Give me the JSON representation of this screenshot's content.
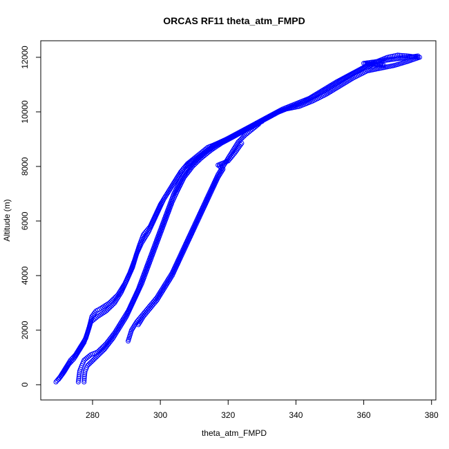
{
  "chart_data": {
    "type": "scatter",
    "title": "ORCAS RF11 theta_atm_FMPD",
    "xlabel": "theta_atm_FMPD",
    "ylabel": "Altitude (m)",
    "xlim": [
      269,
      377
    ],
    "ylim": [
      100,
      12100
    ],
    "xticks": [
      280,
      300,
      320,
      340,
      360,
      380
    ],
    "yticks": [
      0,
      2000,
      4000,
      6000,
      8000,
      10000,
      12000
    ],
    "grid": false,
    "marker": "open-circle",
    "color": "#0000ff",
    "series": [
      {
        "points": [
          [
            269.2,
            100
          ],
          [
            270.5,
            300
          ],
          [
            272.0,
            600
          ],
          [
            273.5,
            900
          ],
          [
            275.0,
            1100
          ],
          [
            276.5,
            1400
          ],
          [
            278.0,
            1700
          ],
          [
            279.0,
            2100
          ],
          [
            279.8,
            2500
          ],
          [
            281.0,
            2700
          ],
          [
            282.5,
            2800
          ],
          [
            285.0,
            3000
          ],
          [
            287.5,
            3300
          ],
          [
            289.5,
            3700
          ],
          [
            291.0,
            4100
          ],
          [
            292.5,
            4600
          ],
          [
            293.8,
            5100
          ],
          [
            295.0,
            5500
          ],
          [
            297.0,
            5800
          ],
          [
            298.5,
            6200
          ],
          [
            300.0,
            6600
          ],
          [
            302.0,
            7000
          ],
          [
            304.0,
            7400
          ],
          [
            306.0,
            7800
          ],
          [
            308.0,
            8100
          ],
          [
            311.0,
            8400
          ],
          [
            314.0,
            8700
          ],
          [
            318.0,
            8900
          ],
          [
            321.0,
            9100
          ],
          [
            324.0,
            9300
          ],
          [
            327.0,
            9500
          ],
          [
            330.0,
            9700
          ],
          [
            333.0,
            9900
          ],
          [
            336.0,
            10100
          ],
          [
            340.0,
            10300
          ],
          [
            344.0,
            10500
          ],
          [
            348.0,
            10800
          ],
          [
            352.0,
            11100
          ],
          [
            355.0,
            11300
          ],
          [
            358.0,
            11500
          ],
          [
            361.0,
            11700
          ],
          [
            364.0,
            11850
          ],
          [
            367.0,
            12000
          ],
          [
            370.0,
            12080
          ],
          [
            373.0,
            12050
          ],
          [
            376.0,
            12000
          ]
        ]
      },
      {
        "points": [
          [
            270.0,
            200
          ],
          [
            271.5,
            450
          ],
          [
            273.0,
            750
          ],
          [
            274.5,
            950
          ],
          [
            276.0,
            1250
          ],
          [
            277.5,
            1550
          ],
          [
            278.5,
            1900
          ],
          [
            279.5,
            2300
          ],
          [
            281.5,
            2500
          ],
          [
            284.0,
            2700
          ],
          [
            286.5,
            3000
          ],
          [
            288.5,
            3400
          ],
          [
            290.0,
            3800
          ],
          [
            291.8,
            4300
          ],
          [
            293.0,
            4800
          ],
          [
            294.5,
            5200
          ],
          [
            296.5,
            5600
          ],
          [
            298.0,
            6000
          ],
          [
            299.5,
            6400
          ],
          [
            301.0,
            6800
          ],
          [
            303.0,
            7200
          ],
          [
            305.0,
            7600
          ],
          [
            307.0,
            7950
          ],
          [
            309.5,
            8200
          ],
          [
            313.0,
            8500
          ],
          [
            316.0,
            8800
          ],
          [
            319.5,
            9000
          ],
          [
            323.0,
            9200
          ],
          [
            326.0,
            9400
          ],
          [
            329.0,
            9600
          ],
          [
            332.0,
            9800
          ],
          [
            335.0,
            10000
          ],
          [
            338.0,
            10150
          ],
          [
            342.0,
            10350
          ],
          [
            346.0,
            10600
          ],
          [
            350.0,
            10900
          ],
          [
            354.0,
            11200
          ],
          [
            357.0,
            11400
          ],
          [
            360.0,
            11600
          ],
          [
            363.0,
            11750
          ],
          [
            366.0,
            11700
          ],
          [
            360.0,
            11780
          ],
          [
            376.0,
            12050
          ]
        ]
      },
      {
        "points": [
          [
            275.8,
            100
          ],
          [
            276.0,
            300
          ],
          [
            276.2,
            500
          ],
          [
            276.8,
            700
          ],
          [
            277.5,
            900
          ],
          [
            279.5,
            1100
          ],
          [
            281.5,
            1200
          ],
          [
            284.0,
            1500
          ],
          [
            286.5,
            1900
          ],
          [
            288.5,
            2300
          ],
          [
            290.5,
            2700
          ],
          [
            292.0,
            3100
          ],
          [
            293.5,
            3500
          ],
          [
            295.0,
            4000
          ],
          [
            296.5,
            4500
          ],
          [
            298.0,
            5000
          ],
          [
            299.5,
            5500
          ],
          [
            301.0,
            6000
          ],
          [
            302.5,
            6500
          ],
          [
            304.0,
            7000
          ],
          [
            306.0,
            7500
          ],
          [
            308.0,
            7900
          ],
          [
            310.5,
            8200
          ],
          [
            313.0,
            8500
          ],
          [
            316.0,
            8750
          ],
          [
            319.0,
            8950
          ],
          [
            322.0,
            9150
          ],
          [
            325.0,
            9350
          ],
          [
            328.0,
            9550
          ],
          [
            331.0,
            9750
          ],
          [
            334.0,
            9950
          ],
          [
            337.0,
            10100
          ],
          [
            341.0,
            10200
          ],
          [
            345.0,
            10400
          ],
          [
            349.0,
            10650
          ],
          [
            353.0,
            10950
          ],
          [
            357.0,
            11250
          ],
          [
            361.0,
            11500
          ],
          [
            365.0,
            11600
          ],
          [
            369.0,
            11700
          ],
          [
            373.0,
            11850
          ],
          [
            376.5,
            12000
          ]
        ]
      },
      {
        "points": [
          [
            277.5,
            100
          ],
          [
            277.6,
            300
          ],
          [
            277.8,
            500
          ],
          [
            278.5,
            700
          ],
          [
            281.0,
            1000
          ],
          [
            283.5,
            1300
          ],
          [
            286.0,
            1700
          ],
          [
            288.0,
            2100
          ],
          [
            290.0,
            2500
          ],
          [
            291.5,
            2900
          ],
          [
            293.0,
            3300
          ],
          [
            294.5,
            3700
          ],
          [
            296.0,
            4200
          ],
          [
            297.5,
            4700
          ],
          [
            299.0,
            5200
          ],
          [
            300.5,
            5700
          ],
          [
            302.0,
            6200
          ],
          [
            303.5,
            6700
          ],
          [
            305.0,
            7100
          ],
          [
            307.0,
            7600
          ],
          [
            309.5,
            8000
          ],
          [
            312.0,
            8300
          ],
          [
            315.0,
            8600
          ],
          [
            318.0,
            8850
          ],
          [
            321.0,
            9050
          ],
          [
            324.0,
            9250
          ],
          [
            327.0,
            9450
          ],
          [
            330.0,
            9650
          ]
        ]
      },
      {
        "points": [
          [
            290.5,
            1600
          ],
          [
            291.5,
            2000
          ],
          [
            293.0,
            2300
          ],
          [
            295.0,
            2600
          ],
          [
            297.0,
            2900
          ],
          [
            299.0,
            3200
          ],
          [
            300.5,
            3500
          ],
          [
            302.0,
            3800
          ],
          [
            303.5,
            4100
          ],
          [
            305.0,
            4500
          ],
          [
            306.5,
            4900
          ],
          [
            308.0,
            5300
          ],
          [
            309.5,
            5700
          ],
          [
            311.0,
            6100
          ],
          [
            312.5,
            6500
          ],
          [
            314.0,
            6900
          ],
          [
            315.5,
            7300
          ],
          [
            317.0,
            7700
          ],
          [
            318.5,
            8000
          ],
          [
            320.0,
            8300
          ],
          [
            321.5,
            8600
          ],
          [
            323.0,
            8900
          ],
          [
            325.0,
            9150
          ],
          [
            327.0,
            9350
          ],
          [
            329.0,
            9550
          ]
        ]
      },
      {
        "points": [
          [
            293.5,
            2200
          ],
          [
            295.0,
            2500
          ],
          [
            297.0,
            2800
          ],
          [
            299.0,
            3100
          ],
          [
            300.5,
            3400
          ],
          [
            302.0,
            3700
          ],
          [
            303.5,
            4000
          ],
          [
            305.0,
            4400
          ],
          [
            306.5,
            4800
          ],
          [
            308.0,
            5200
          ],
          [
            309.5,
            5600
          ],
          [
            311.0,
            6000
          ],
          [
            312.5,
            6400
          ],
          [
            314.0,
            6800
          ],
          [
            315.5,
            7200
          ],
          [
            317.0,
            7600
          ],
          [
            318.5,
            7900
          ],
          [
            317.0,
            8050
          ],
          [
            320.0,
            8200
          ],
          [
            322.0,
            8500
          ],
          [
            324.0,
            8850
          ]
        ]
      }
    ]
  }
}
